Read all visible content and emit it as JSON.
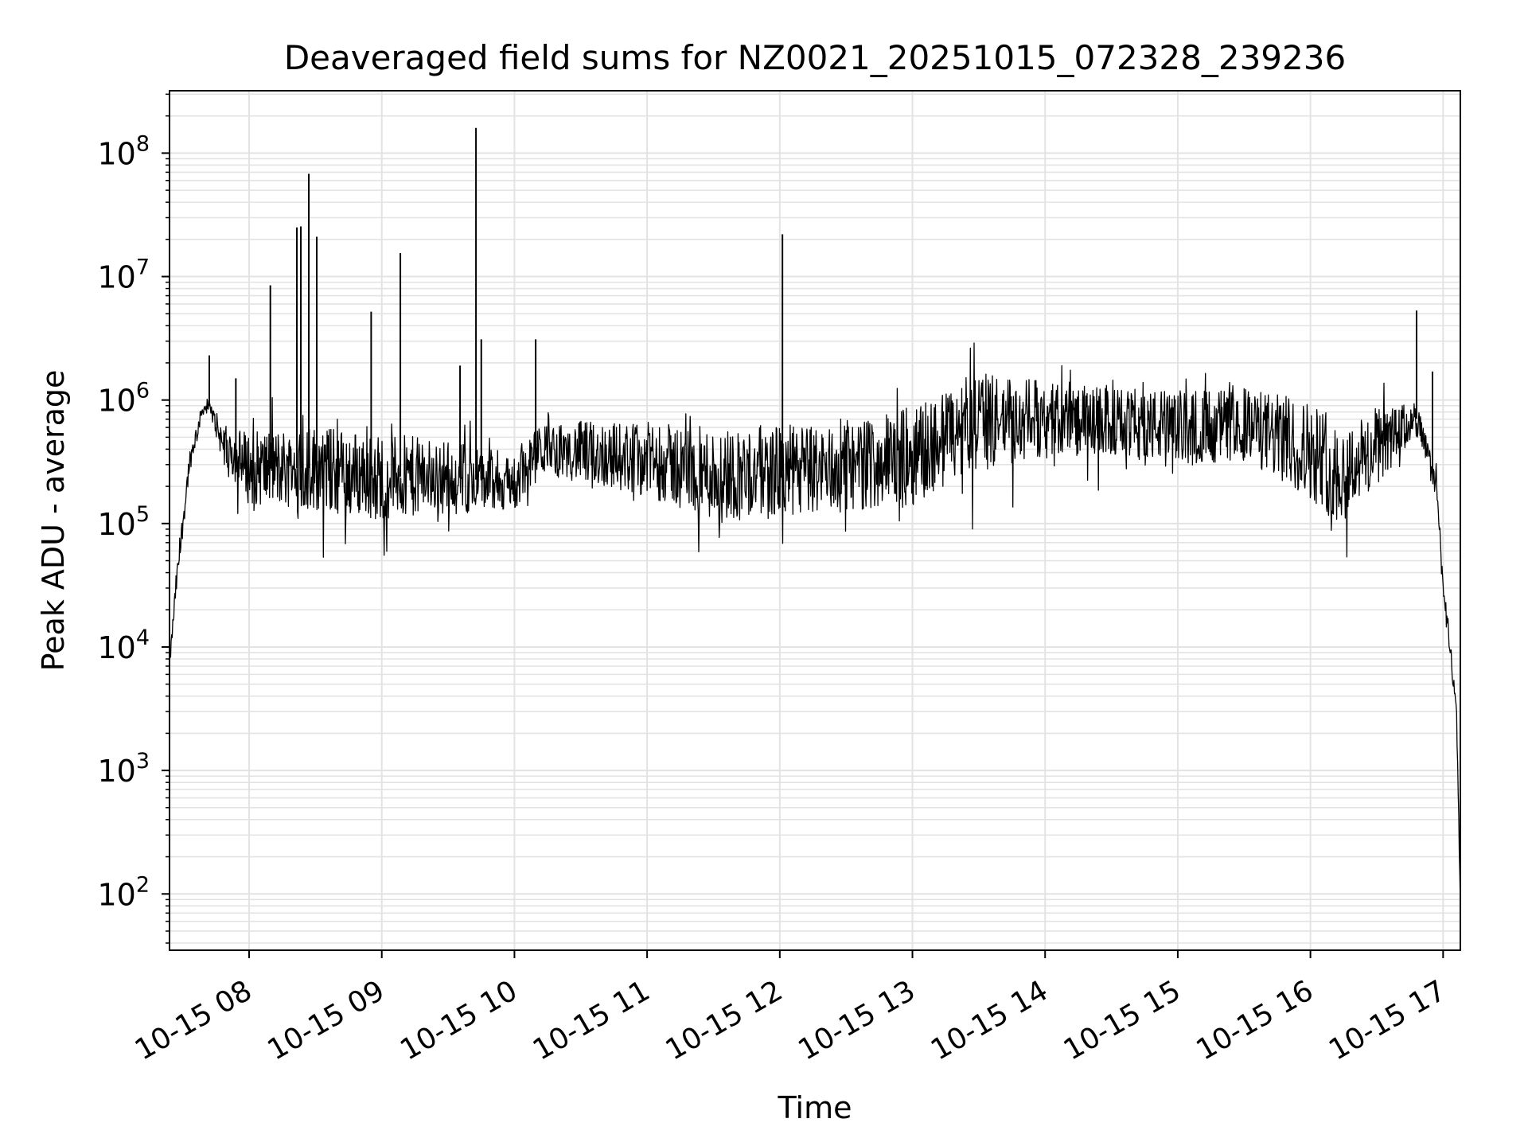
{
  "chart_data": {
    "type": "line",
    "title": "Deaveraged field sums for NZ0021_20251015_072328_239236",
    "xlabel": "Time",
    "ylabel": "Peak ADU - average",
    "yscale": "log",
    "ylim": [
      35,
      320000000
    ],
    "xlim": [
      7.4,
      17.13
    ],
    "grid": true,
    "x_tick_values": [
      8,
      9,
      10,
      11,
      12,
      13,
      14,
      15,
      16,
      17
    ],
    "x_tick_labels": [
      "10-15 08",
      "10-15 09",
      "10-15 10",
      "10-15 11",
      "10-15 12",
      "10-15 13",
      "10-15 14",
      "10-15 15",
      "10-15 16",
      "10-15 17"
    ],
    "y_tick_exponents": [
      2,
      3,
      4,
      5,
      6,
      7,
      8
    ],
    "y_tick_base": "10",
    "series": [
      {
        "name": "Peak ADU - average",
        "color": "#000000",
        "envelope_hours": [
          7.4,
          7.45,
          7.55,
          7.65,
          7.7,
          7.8,
          8.0,
          8.5,
          9.0,
          9.5,
          10.0,
          10.2,
          10.5,
          11.0,
          11.5,
          12.0,
          12.5,
          13.0,
          13.5,
          14.0,
          14.5,
          15.0,
          15.5,
          16.0,
          16.2,
          16.5,
          16.8,
          16.95,
          17.0,
          17.05,
          17.1,
          17.12,
          17.13
        ],
        "envelope_log_center": [
          3.85,
          4.5,
          5.5,
          5.93,
          5.95,
          5.65,
          5.45,
          5.45,
          5.38,
          5.38,
          5.32,
          5.6,
          5.58,
          5.52,
          5.4,
          5.42,
          5.45,
          5.55,
          5.82,
          5.85,
          5.82,
          5.78,
          5.8,
          5.6,
          5.4,
          5.6,
          5.85,
          5.3,
          4.5,
          4.0,
          3.5,
          2.5,
          1.9
        ],
        "envelope_log_noise": [
          0.05,
          0.1,
          0.1,
          0.05,
          0.05,
          0.15,
          0.3,
          0.35,
          0.35,
          0.3,
          0.25,
          0.2,
          0.25,
          0.3,
          0.38,
          0.38,
          0.35,
          0.4,
          0.4,
          0.3,
          0.28,
          0.3,
          0.3,
          0.4,
          0.4,
          0.3,
          0.15,
          0.1,
          0.1,
          0.1,
          0.05,
          0.05,
          0.0
        ],
        "spikes": [
          {
            "x": 7.7,
            "y": 2300000
          },
          {
            "x": 7.9,
            "y": 1500000
          },
          {
            "x": 8.16,
            "y": 8500000
          },
          {
            "x": 8.36,
            "y": 25000000
          },
          {
            "x": 8.39,
            "y": 25500000
          },
          {
            "x": 8.45,
            "y": 68000000
          },
          {
            "x": 8.51,
            "y": 21000000
          },
          {
            "x": 8.92,
            "y": 5200000
          },
          {
            "x": 9.14,
            "y": 15500000
          },
          {
            "x": 9.59,
            "y": 1900000
          },
          {
            "x": 9.71,
            "y": 160000000
          },
          {
            "x": 9.75,
            "y": 3100000
          },
          {
            "x": 10.16,
            "y": 3100000
          },
          {
            "x": 12.02,
            "y": 22000000
          },
          {
            "x": 16.8,
            "y": 5300000
          },
          {
            "x": 16.92,
            "y": 1700000
          }
        ]
      }
    ]
  }
}
